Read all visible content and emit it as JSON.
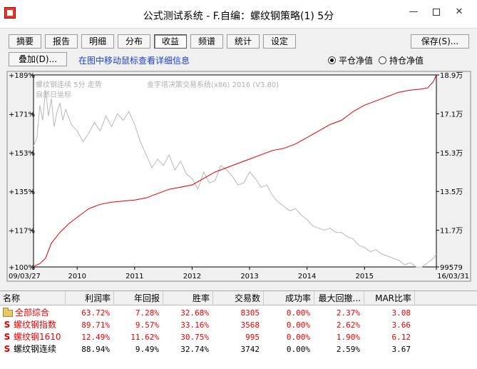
{
  "window": {
    "title": "公式测试系统 - F.自编：螺纹钢策略(1) 5分",
    "min_glyph": "—",
    "close_glyph": "✕"
  },
  "toolbar": {
    "tabs": [
      "摘要",
      "报告",
      "明细",
      "分布",
      "收益",
      "频谱",
      "统计",
      "设定"
    ],
    "active_tab": "收益",
    "save_label": "保存(S)...",
    "overlay_label": "叠加(D)...",
    "hint": "在图中移动鼠标查看详细信息",
    "radio_flat": "平仓净值",
    "radio_hold": "持仓净值",
    "radio_selected": "平仓净值"
  },
  "chart_data": {
    "type": "line",
    "watermark_left": "螺纹钢连续 5分  走势",
    "watermark_left2": "自然日坐标",
    "watermark_center": "金字塔决策交易系统(x86) 2016 (V3.80)",
    "left_axis_ticks": [
      "+189%",
      "+171%",
      "+153%",
      "+135%",
      "+117%",
      "+100%"
    ],
    "left_axis_values": [
      189,
      171,
      153,
      135,
      117,
      100
    ],
    "right_axis_ticks": [
      "18.9万",
      "17.1万",
      "15.3万",
      "13.5万",
      "11.7万",
      "99579"
    ],
    "x_ticks": [
      "09/03/27",
      "2010",
      "2011",
      "2012",
      "2013",
      "2014",
      "2015",
      "16/03/31"
    ],
    "ylim": [
      100,
      189
    ],
    "series": [
      {
        "name": "净值",
        "color": "#e00000",
        "x": [
          2009.24,
          2009.3,
          2009.35,
          2009.45,
          2009.55,
          2009.7,
          2009.85,
          2010.0,
          2010.2,
          2010.4,
          2010.6,
          2010.8,
          2011.0,
          2011.2,
          2011.4,
          2011.6,
          2011.8,
          2012.0,
          2012.2,
          2012.4,
          2012.6,
          2012.8,
          2013.0,
          2013.2,
          2013.4,
          2013.6,
          2013.8,
          2014.0,
          2014.2,
          2014.4,
          2014.6,
          2014.8,
          2015.0,
          2015.2,
          2015.4,
          2015.6,
          2015.8,
          2016.0,
          2016.1,
          2016.2,
          2016.25
        ],
        "values": [
          100,
          101,
          101.5,
          104,
          111,
          116,
          120,
          123,
          127,
          129,
          130,
          130.5,
          131,
          132,
          134,
          136,
          137,
          138,
          141,
          144,
          146,
          148,
          150,
          152,
          154,
          155,
          157,
          160,
          163,
          166,
          168,
          172,
          175,
          177,
          179,
          181,
          182,
          182.5,
          183,
          186,
          189
        ]
      },
      {
        "name": "螺纹钢连续",
        "color": "#b8b8b8",
        "x": [
          2009.24,
          2009.3,
          2009.35,
          2009.4,
          2009.45,
          2009.5,
          2009.55,
          2009.6,
          2009.65,
          2009.7,
          2009.75,
          2009.8,
          2009.9,
          2010.0,
          2010.1,
          2010.2,
          2010.3,
          2010.4,
          2010.5,
          2010.6,
          2010.7,
          2010.8,
          2010.9,
          2011.0,
          2011.1,
          2011.2,
          2011.3,
          2011.4,
          2011.5,
          2011.6,
          2011.7,
          2011.8,
          2011.9,
          2012.0,
          2012.1,
          2012.2,
          2012.3,
          2012.4,
          2012.5,
          2012.6,
          2012.7,
          2012.8,
          2012.9,
          2013.0,
          2013.1,
          2013.2,
          2013.3,
          2013.4,
          2013.5,
          2013.6,
          2013.7,
          2013.8,
          2013.9,
          2014.0,
          2014.1,
          2014.2,
          2014.3,
          2014.4,
          2014.5,
          2014.6,
          2014.7,
          2014.8,
          2014.9,
          2015.0,
          2015.1,
          2015.2,
          2015.3,
          2015.4,
          2015.5,
          2015.6,
          2015.7,
          2015.8,
          2015.9,
          2016.0,
          2016.1,
          2016.2,
          2016.25
        ],
        "values": [
          156,
          160,
          175,
          168,
          182,
          170,
          178,
          165,
          172,
          176,
          168,
          173,
          166,
          163,
          158,
          162,
          167,
          163,
          170,
          165,
          171,
          168,
          172,
          166,
          158,
          152,
          146,
          150,
          147,
          152,
          145,
          149,
          143,
          141,
          136,
          144,
          139,
          140,
          147,
          145,
          142,
          138,
          139,
          144,
          141,
          137,
          138,
          133,
          130,
          128,
          126,
          127,
          124,
          122,
          119,
          118,
          117,
          118,
          116,
          116,
          114,
          113,
          110,
          109,
          107,
          108,
          106,
          105,
          104,
          103,
          101,
          102,
          100,
          100,
          102,
          104,
          106
        ]
      }
    ]
  },
  "table": {
    "headers": [
      "名称",
      "利润率",
      "年回报",
      "胜率",
      "交易数",
      "成功率",
      "最大回撤...",
      "MAR比率"
    ],
    "rows": [
      {
        "icon": "folder-icon",
        "name": "全部综合",
        "cells": [
          "63.72%",
          "7.28%",
          "32.68%",
          "8305",
          "0.00%",
          "2.37%",
          "3.08"
        ],
        "color": "red"
      },
      {
        "icon": "s-icon",
        "name": "螺纹钢指数",
        "cells": [
          "89.71%",
          "9.57%",
          "33.16%",
          "3568",
          "0.00%",
          "2.62%",
          "3.66"
        ],
        "color": "red"
      },
      {
        "icon": "s-icon",
        "name": "螺纹钢1610",
        "cells": [
          "12.49%",
          "11.62%",
          "30.75%",
          "995",
          "0.00%",
          "1.90%",
          "6.12"
        ],
        "color": "red"
      },
      {
        "icon": "s-icon",
        "name": "螺纹钢连续",
        "cells": [
          "88.94%",
          "9.49%",
          "32.74%",
          "3742",
          "0.00%",
          "2.59%",
          "3.67"
        ],
        "color": "black"
      }
    ],
    "s_glyph": "S"
  }
}
